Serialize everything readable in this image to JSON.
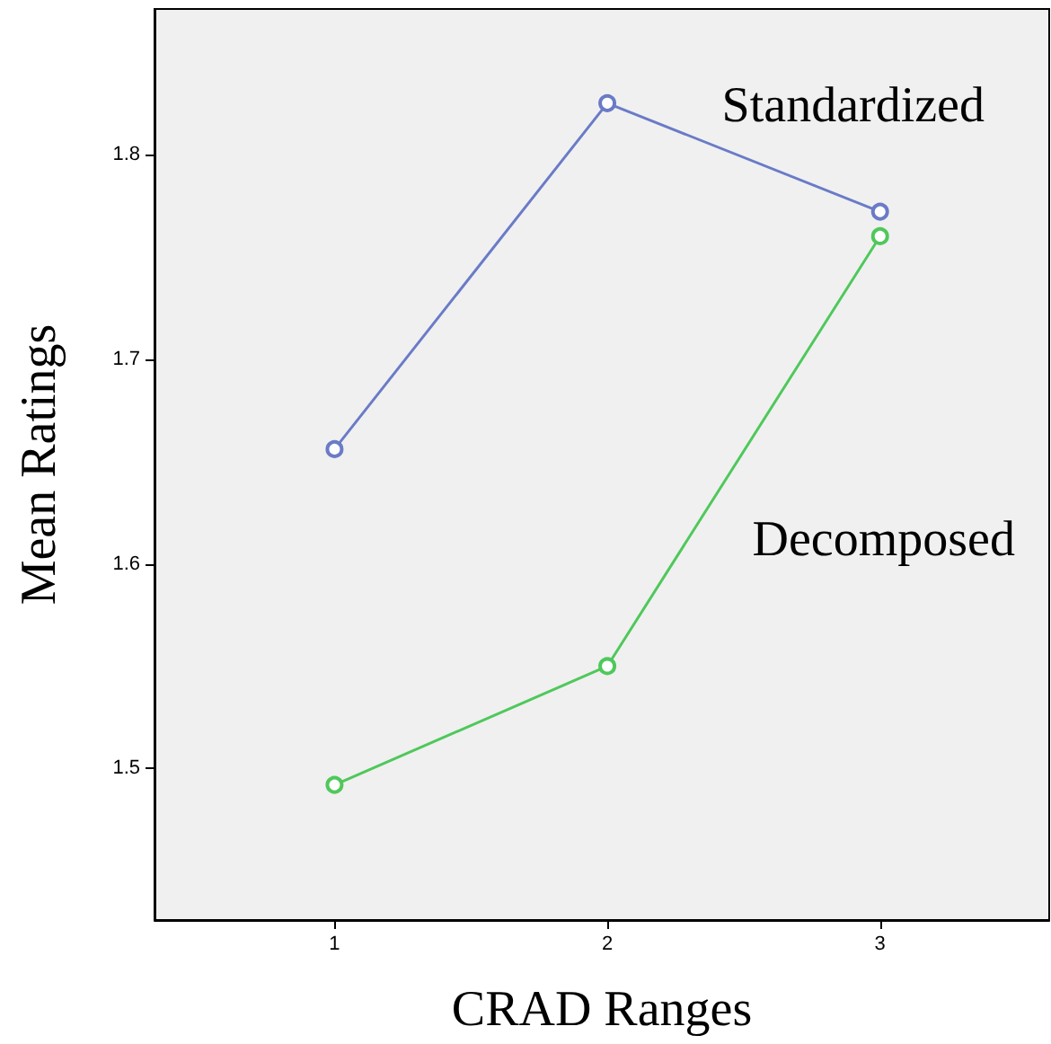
{
  "chart_data": {
    "type": "line",
    "xlabel": "CRAD Ranges",
    "ylabel": "Mean Ratings",
    "x": [
      1,
      2,
      3
    ],
    "xlim": [
      0.34,
      3.62
    ],
    "xticks": [
      1,
      2,
      3
    ],
    "ylim": [
      1.426,
      1.871
    ],
    "yticks": [
      1.5,
      1.6,
      1.7,
      1.8
    ],
    "series": [
      {
        "name": "Standardized",
        "color": "#6a7bc7",
        "values": [
          1.656,
          1.825,
          1.772
        ]
      },
      {
        "name": "Decomposed",
        "color": "#4fc85b",
        "values": [
          1.492,
          1.55,
          1.76
        ]
      }
    ],
    "marker": "circle",
    "line_style": "solid",
    "grid": false,
    "legend": false
  }
}
